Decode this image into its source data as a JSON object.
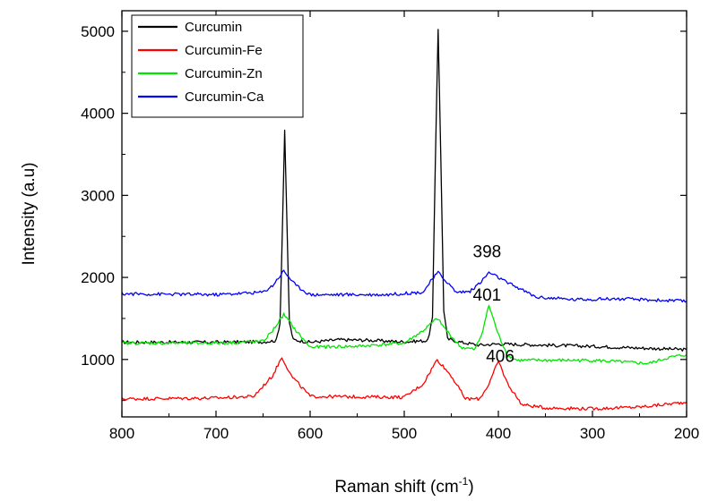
{
  "chart_data": {
    "type": "line",
    "xlabel": "Raman shift (cm",
    "xlabel_sup": "-1",
    "xlabel_close": ")",
    "ylabel": "Intensity (a.u)",
    "xlim": [
      800,
      200
    ],
    "ylim": [
      300,
      5250
    ],
    "x_ticks": [
      800,
      700,
      600,
      500,
      400,
      300,
      200
    ],
    "x_tick_labels": [
      "800",
      "700",
      "600",
      "500",
      "400",
      "300",
      "200"
    ],
    "y_ticks": [
      1000,
      2000,
      3000,
      4000,
      5000
    ],
    "y_tick_labels": [
      "1000",
      "2000",
      "3000",
      "4000",
      "5000"
    ],
    "grid": false,
    "legend_position": "top-left",
    "series": [
      {
        "name": "Curcumin",
        "color": "#000000",
        "points": [
          [
            800,
            1210
          ],
          [
            700,
            1210
          ],
          [
            650,
            1215
          ],
          [
            636,
            1230
          ],
          [
            632,
            1450
          ],
          [
            629,
            2800
          ],
          [
            627,
            3800
          ],
          [
            625,
            2800
          ],
          [
            622,
            1450
          ],
          [
            618,
            1240
          ],
          [
            600,
            1210
          ],
          [
            570,
            1240
          ],
          [
            540,
            1235
          ],
          [
            500,
            1215
          ],
          [
            475,
            1230
          ],
          [
            470,
            1500
          ],
          [
            467,
            3400
          ],
          [
            464,
            5030
          ],
          [
            461,
            3400
          ],
          [
            458,
            1600
          ],
          [
            454,
            1250
          ],
          [
            440,
            1210
          ],
          [
            420,
            1175
          ],
          [
            400,
            1190
          ],
          [
            300,
            1160
          ],
          [
            200,
            1120
          ]
        ]
      },
      {
        "name": "Curcumin-Fe",
        "color": "#ff0000",
        "points": [
          [
            800,
            520
          ],
          [
            700,
            530
          ],
          [
            660,
            550
          ],
          [
            640,
            800
          ],
          [
            630,
            1030
          ],
          [
            620,
            800
          ],
          [
            600,
            550
          ],
          [
            500,
            540
          ],
          [
            480,
            700
          ],
          [
            465,
            1000
          ],
          [
            450,
            800
          ],
          [
            435,
            520
          ],
          [
            420,
            520
          ],
          [
            410,
            700
          ],
          [
            400,
            980
          ],
          [
            390,
            700
          ],
          [
            375,
            450
          ],
          [
            350,
            410
          ],
          [
            300,
            400
          ],
          [
            250,
            420
          ],
          [
            200,
            480
          ]
        ]
      },
      {
        "name": "Curcumin-Zn",
        "color": "#00e600",
        "points": [
          [
            800,
            1200
          ],
          [
            700,
            1200
          ],
          [
            650,
            1220
          ],
          [
            640,
            1350
          ],
          [
            628,
            1550
          ],
          [
            615,
            1350
          ],
          [
            600,
            1150
          ],
          [
            550,
            1160
          ],
          [
            500,
            1200
          ],
          [
            480,
            1350
          ],
          [
            465,
            1500
          ],
          [
            455,
            1350
          ],
          [
            440,
            1150
          ],
          [
            425,
            1120
          ],
          [
            418,
            1300
          ],
          [
            410,
            1660
          ],
          [
            400,
            1300
          ],
          [
            390,
            1050
          ],
          [
            380,
            990
          ],
          [
            300,
            990
          ],
          [
            240,
            950
          ],
          [
            220,
            1020
          ],
          [
            200,
            1060
          ]
        ]
      },
      {
        "name": "Curcumin-Ca",
        "color": "#0000ff",
        "points": [
          [
            800,
            1800
          ],
          [
            700,
            1790
          ],
          [
            650,
            1820
          ],
          [
            640,
            1900
          ],
          [
            628,
            2080
          ],
          [
            615,
            1900
          ],
          [
            600,
            1790
          ],
          [
            520,
            1790
          ],
          [
            480,
            1820
          ],
          [
            472,
            1950
          ],
          [
            464,
            2060
          ],
          [
            455,
            1950
          ],
          [
            445,
            1820
          ],
          [
            430,
            1830
          ],
          [
            418,
            1950
          ],
          [
            410,
            2060
          ],
          [
            400,
            2000
          ],
          [
            390,
            1930
          ],
          [
            380,
            1880
          ],
          [
            360,
            1760
          ],
          [
            320,
            1730
          ],
          [
            280,
            1740
          ],
          [
            250,
            1730
          ],
          [
            200,
            1710
          ]
        ]
      }
    ],
    "annotations": [
      {
        "text": "398",
        "x": 412,
        "y": 2245
      },
      {
        "text": "401",
        "x": 412,
        "y": 1720
      },
      {
        "text": "406",
        "x": 398,
        "y": 970
      }
    ]
  }
}
